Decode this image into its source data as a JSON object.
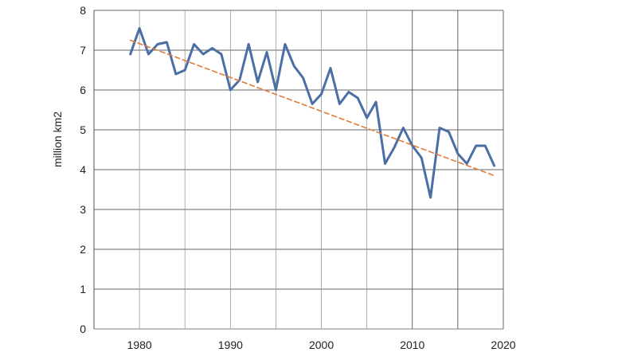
{
  "chart_data": {
    "type": "line",
    "title": "",
    "xlabel": "",
    "ylabel": "million km2",
    "xlim": [
      1975,
      2020
    ],
    "ylim": [
      0,
      8
    ],
    "xticks": [
      1980,
      1990,
      2000,
      2010,
      2020
    ],
    "xtick_labels": [
      "1980",
      "1990",
      "2000",
      "2010",
      "2020"
    ],
    "yticks": [
      0,
      1,
      2,
      3,
      4,
      5,
      6,
      7,
      8
    ],
    "ytick_labels": [
      "0",
      "1",
      "2",
      "3",
      "4",
      "5",
      "6",
      "7",
      "8"
    ],
    "grid": true,
    "legend": "none",
    "series": [
      {
        "style": "solid",
        "color": "#4a6fa5",
        "x": [
          1979,
          1980,
          1981,
          1982,
          1983,
          1984,
          1985,
          1986,
          1987,
          1988,
          1989,
          1990,
          1991,
          1992,
          1993,
          1994,
          1995,
          1996,
          1997,
          1998,
          1999,
          2000,
          2001,
          2002,
          2003,
          2004,
          2005,
          2006,
          2007,
          2008,
          2009,
          2010,
          2011,
          2012,
          2013,
          2014,
          2015,
          2016,
          2017,
          2018,
          2019
        ],
        "values": [
          6.9,
          7.55,
          6.9,
          7.15,
          7.2,
          6.4,
          6.5,
          7.15,
          6.9,
          7.05,
          6.9,
          6.0,
          6.25,
          7.15,
          6.2,
          6.95,
          6.0,
          7.15,
          6.6,
          6.3,
          5.65,
          5.9,
          6.55,
          5.65,
          5.95,
          5.8,
          5.3,
          5.7,
          4.15,
          4.55,
          5.05,
          4.6,
          4.3,
          3.3,
          5.05,
          4.95,
          4.4,
          4.15,
          4.6,
          4.6,
          4.1
        ]
      },
      {
        "style": "dashed",
        "color": "#e07b39",
        "x": [
          1979,
          2019
        ],
        "values": [
          7.25,
          3.85
        ]
      }
    ]
  }
}
